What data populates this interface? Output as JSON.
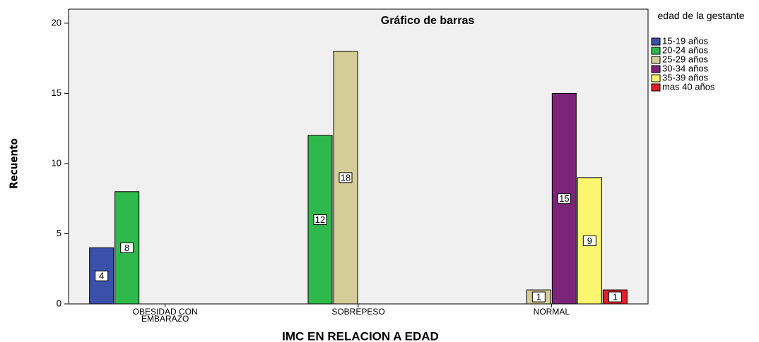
{
  "chart_data": {
    "type": "bar",
    "title": "Gráfico de barras",
    "x_label": "IMC  EN RELACION A EDAD",
    "y_label": "Recuento",
    "legend_title": "edad de la gestante",
    "categories": [
      "OBESIDAD CON EMBARAZO",
      "SOBREPESO",
      "NORMAL"
    ],
    "series": [
      {
        "name": "15-19 años",
        "color": "#3b50a8",
        "values": [
          4,
          null,
          null
        ]
      },
      {
        "name": "20-24 años",
        "color": "#2fb84b",
        "values": [
          8,
          12,
          null
        ]
      },
      {
        "name": "25-29 años",
        "color": "#d4cd98",
        "values": [
          null,
          18,
          1
        ]
      },
      {
        "name": "30-34 años",
        "color": "#7c2479",
        "values": [
          null,
          null,
          15
        ]
      },
      {
        "name": "35-39 años",
        "color": "#fbf56f",
        "values": [
          null,
          null,
          9
        ]
      },
      {
        "name": "mas 40 años",
        "color": "#e0212b",
        "values": [
          null,
          null,
          1
        ]
      }
    ],
    "ylim": [
      0,
      21
    ],
    "yticks": [
      0,
      5,
      10,
      15,
      20
    ],
    "grid": false,
    "legend": "right"
  }
}
